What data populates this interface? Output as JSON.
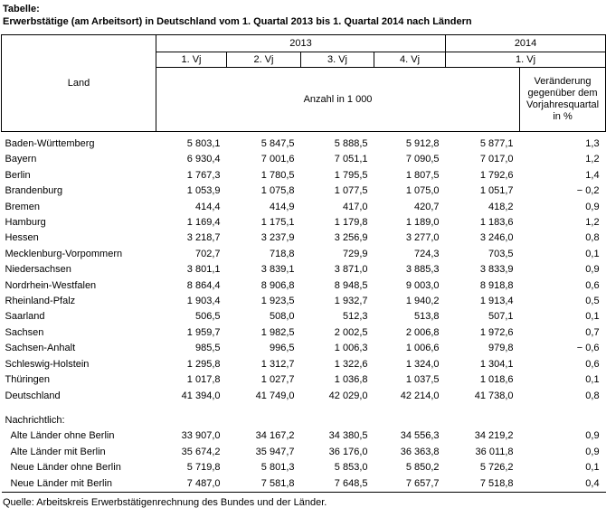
{
  "colors": {
    "border": "#000000",
    "text": "#000000",
    "background": "#ffffff"
  },
  "title": {
    "label": "Tabelle:",
    "text": "Erwerbstätige (am Arbeitsort) in Deutschland vom 1. Quartal 2013 bis 1. Quartal 2014 nach Ländern"
  },
  "table": {
    "header": {
      "land": "Land",
      "year_2013": "2013",
      "year_2014": "2014",
      "quarters_2013": [
        "1. Vj",
        "2. Vj",
        "3. Vj",
        "4. Vj"
      ],
      "quarter_2014": "1. Vj",
      "unit": "Anzahl in 1 000",
      "change": "Veränderung gegenüber dem Vorjahresquartal in %"
    },
    "rows": [
      {
        "name": "Baden-Württemberg",
        "values": [
          "5 803,1",
          "5 847,5",
          "5 888,5",
          "5 912,8",
          "5 877,1",
          "1,3"
        ]
      },
      {
        "name": "Bayern",
        "values": [
          "6 930,4",
          "7 001,6",
          "7 051,1",
          "7 090,5",
          "7 017,0",
          "1,2"
        ]
      },
      {
        "name": "Berlin",
        "values": [
          "1 767,3",
          "1 780,5",
          "1 795,5",
          "1 807,5",
          "1 792,6",
          "1,4"
        ]
      },
      {
        "name": "Brandenburg",
        "values": [
          "1 053,9",
          "1 075,8",
          "1 077,5",
          "1 075,0",
          "1 051,7",
          "− 0,2"
        ]
      },
      {
        "name": "Bremen",
        "values": [
          "414,4",
          "414,9",
          "417,0",
          "420,7",
          "418,2",
          "0,9"
        ]
      },
      {
        "name": "Hamburg",
        "values": [
          "1 169,4",
          "1 175,1",
          "1 179,8",
          "1 189,0",
          "1 183,6",
          "1,2"
        ]
      },
      {
        "name": "Hessen",
        "values": [
          "3 218,7",
          "3 237,9",
          "3 256,9",
          "3 277,0",
          "3 246,0",
          "0,8"
        ]
      },
      {
        "name": "Mecklenburg-Vorpommern",
        "values": [
          "702,7",
          "718,8",
          "729,9",
          "724,3",
          "703,5",
          "0,1"
        ]
      },
      {
        "name": "Niedersachsen",
        "values": [
          "3 801,1",
          "3 839,1",
          "3 871,0",
          "3 885,3",
          "3 833,9",
          "0,9"
        ]
      },
      {
        "name": "Nordrhein-Westfalen",
        "values": [
          "8 864,4",
          "8 906,8",
          "8 948,5",
          "9 003,0",
          "8 918,8",
          "0,6"
        ]
      },
      {
        "name": "Rheinland-Pfalz",
        "values": [
          "1 903,4",
          "1 923,5",
          "1 932,7",
          "1 940,2",
          "1 913,4",
          "0,5"
        ]
      },
      {
        "name": "Saarland",
        "values": [
          "506,5",
          "508,0",
          "512,3",
          "513,8",
          "507,1",
          "0,1"
        ]
      },
      {
        "name": "Sachsen",
        "values": [
          "1 959,7",
          "1 982,5",
          "2 002,5",
          "2 006,8",
          "1 972,6",
          "0,7"
        ]
      },
      {
        "name": "Sachsen-Anhalt",
        "values": [
          "985,5",
          "996,5",
          "1 006,3",
          "1 006,6",
          "979,8",
          "− 0,6"
        ]
      },
      {
        "name": "Schleswig-Holstein",
        "values": [
          "1 295,8",
          "1 312,7",
          "1 322,6",
          "1 324,0",
          "1 304,1",
          "0,6"
        ]
      },
      {
        "name": "Thüringen",
        "values": [
          "1 017,8",
          "1 027,7",
          "1 036,8",
          "1 037,5",
          "1 018,6",
          "0,1"
        ]
      },
      {
        "name": "Deutschland",
        "values": [
          "41 394,0",
          "41 749,0",
          "42 029,0",
          "42 214,0",
          "41 738,0",
          "0,8"
        ]
      }
    ],
    "memo": {
      "label": "Nachrichtlich:",
      "rows": [
        {
          "name": "Alte Länder ohne Berlin",
          "values": [
            "33 907,0",
            "34 167,2",
            "34 380,5",
            "34 556,3",
            "34 219,2",
            "0,9"
          ]
        },
        {
          "name": "Alte Länder mit Berlin",
          "values": [
            "35 674,2",
            "35 947,7",
            "36 176,0",
            "36 363,8",
            "36 011,8",
            "0,9"
          ]
        },
        {
          "name": "Neue Länder ohne Berlin",
          "values": [
            "5 719,8",
            "5 801,3",
            "5 853,0",
            "5 850,2",
            "5 726,2",
            "0,1"
          ]
        },
        {
          "name": "Neue Länder mit Berlin",
          "values": [
            "7 487,0",
            "7 581,8",
            "7 648,5",
            "7 657,7",
            "7 518,8",
            "0,4"
          ]
        }
      ]
    }
  },
  "source": "Quelle: Arbeitskreis Erwerbstätigenrechnung des Bundes und der Länder."
}
